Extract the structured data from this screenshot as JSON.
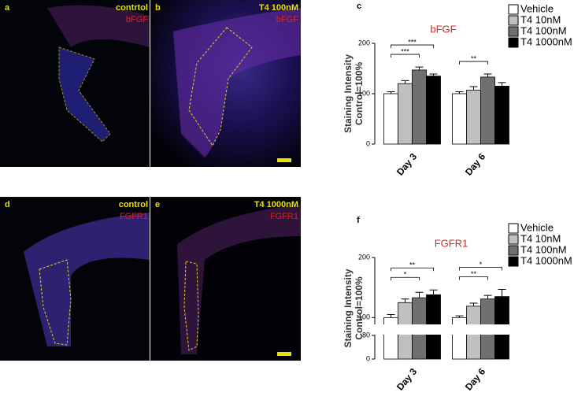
{
  "panels": [
    {
      "letter": "a",
      "label": "contrtol",
      "stain": "bFGF"
    },
    {
      "letter": "b",
      "label": "T4 100nM",
      "stain": "bFGF"
    },
    {
      "letter": "d",
      "label": "control",
      "stain": "FGFR1"
    },
    {
      "letter": "e",
      "label": "T4 1000nM",
      "stain": "FGFR1"
    }
  ],
  "chart_data": [
    {
      "type": "bar",
      "panel_label": "c",
      "title": "bFGF",
      "ylabel": [
        "Staining Intensity",
        "Control=100%"
      ],
      "categories": [
        "Day 3",
        "Day 6"
      ],
      "ylim": [
        0,
        200
      ],
      "yticks": [
        0,
        100,
        200
      ],
      "series": [
        {
          "name": "Vehicle",
          "color": "#ffffff",
          "values": [
            100,
            100
          ],
          "errors": [
            4,
            4
          ]
        },
        {
          "name": "T4 10nM",
          "color": "#c0c0c0",
          "values": [
            120,
            107
          ],
          "errors": [
            6,
            7
          ]
        },
        {
          "name": "T4 100nM",
          "color": "#707070",
          "values": [
            147,
            133
          ],
          "errors": [
            6,
            6
          ]
        },
        {
          "name": "T4 1000nM",
          "color": "#000000",
          "values": [
            135,
            115
          ],
          "errors": [
            4,
            7
          ]
        }
      ],
      "significance": [
        {
          "category": 0,
          "from": 0,
          "to": 3,
          "label": "***"
        },
        {
          "category": 0,
          "from": 0,
          "to": 2,
          "label": "***"
        },
        {
          "category": 1,
          "from": 0,
          "to": 2,
          "label": "**"
        }
      ]
    },
    {
      "type": "bar",
      "panel_label": "f",
      "title": "FGFR1",
      "ylabel": [
        "Staining Intensity",
        "Control=100%"
      ],
      "categories": [
        "Day 3",
        "Day 6"
      ],
      "ylim": [
        0,
        200
      ],
      "yticks": [
        0,
        80,
        100,
        200
      ],
      "ybreak": [
        80,
        90
      ],
      "series": [
        {
          "name": "Vehicle",
          "color": "#ffffff",
          "values": [
            100,
            100
          ],
          "errors": [
            5,
            3
          ]
        },
        {
          "name": "T4 10nM",
          "color": "#c0c0c0",
          "values": [
            125,
            119
          ],
          "errors": [
            6,
            5
          ]
        },
        {
          "name": "T4 100nM",
          "color": "#707070",
          "values": [
            133,
            131
          ],
          "errors": [
            9,
            6
          ]
        },
        {
          "name": "T4 1000nM",
          "color": "#000000",
          "values": [
            138,
            135
          ],
          "errors": [
            8,
            12
          ]
        }
      ],
      "significance": [
        {
          "category": 0,
          "from": 0,
          "to": 3,
          "label": "**"
        },
        {
          "category": 0,
          "from": 0,
          "to": 2,
          "label": "*"
        },
        {
          "category": 1,
          "from": 0,
          "to": 3,
          "label": "*"
        },
        {
          "category": 1,
          "from": 0,
          "to": 2,
          "label": "**"
        }
      ]
    }
  ]
}
